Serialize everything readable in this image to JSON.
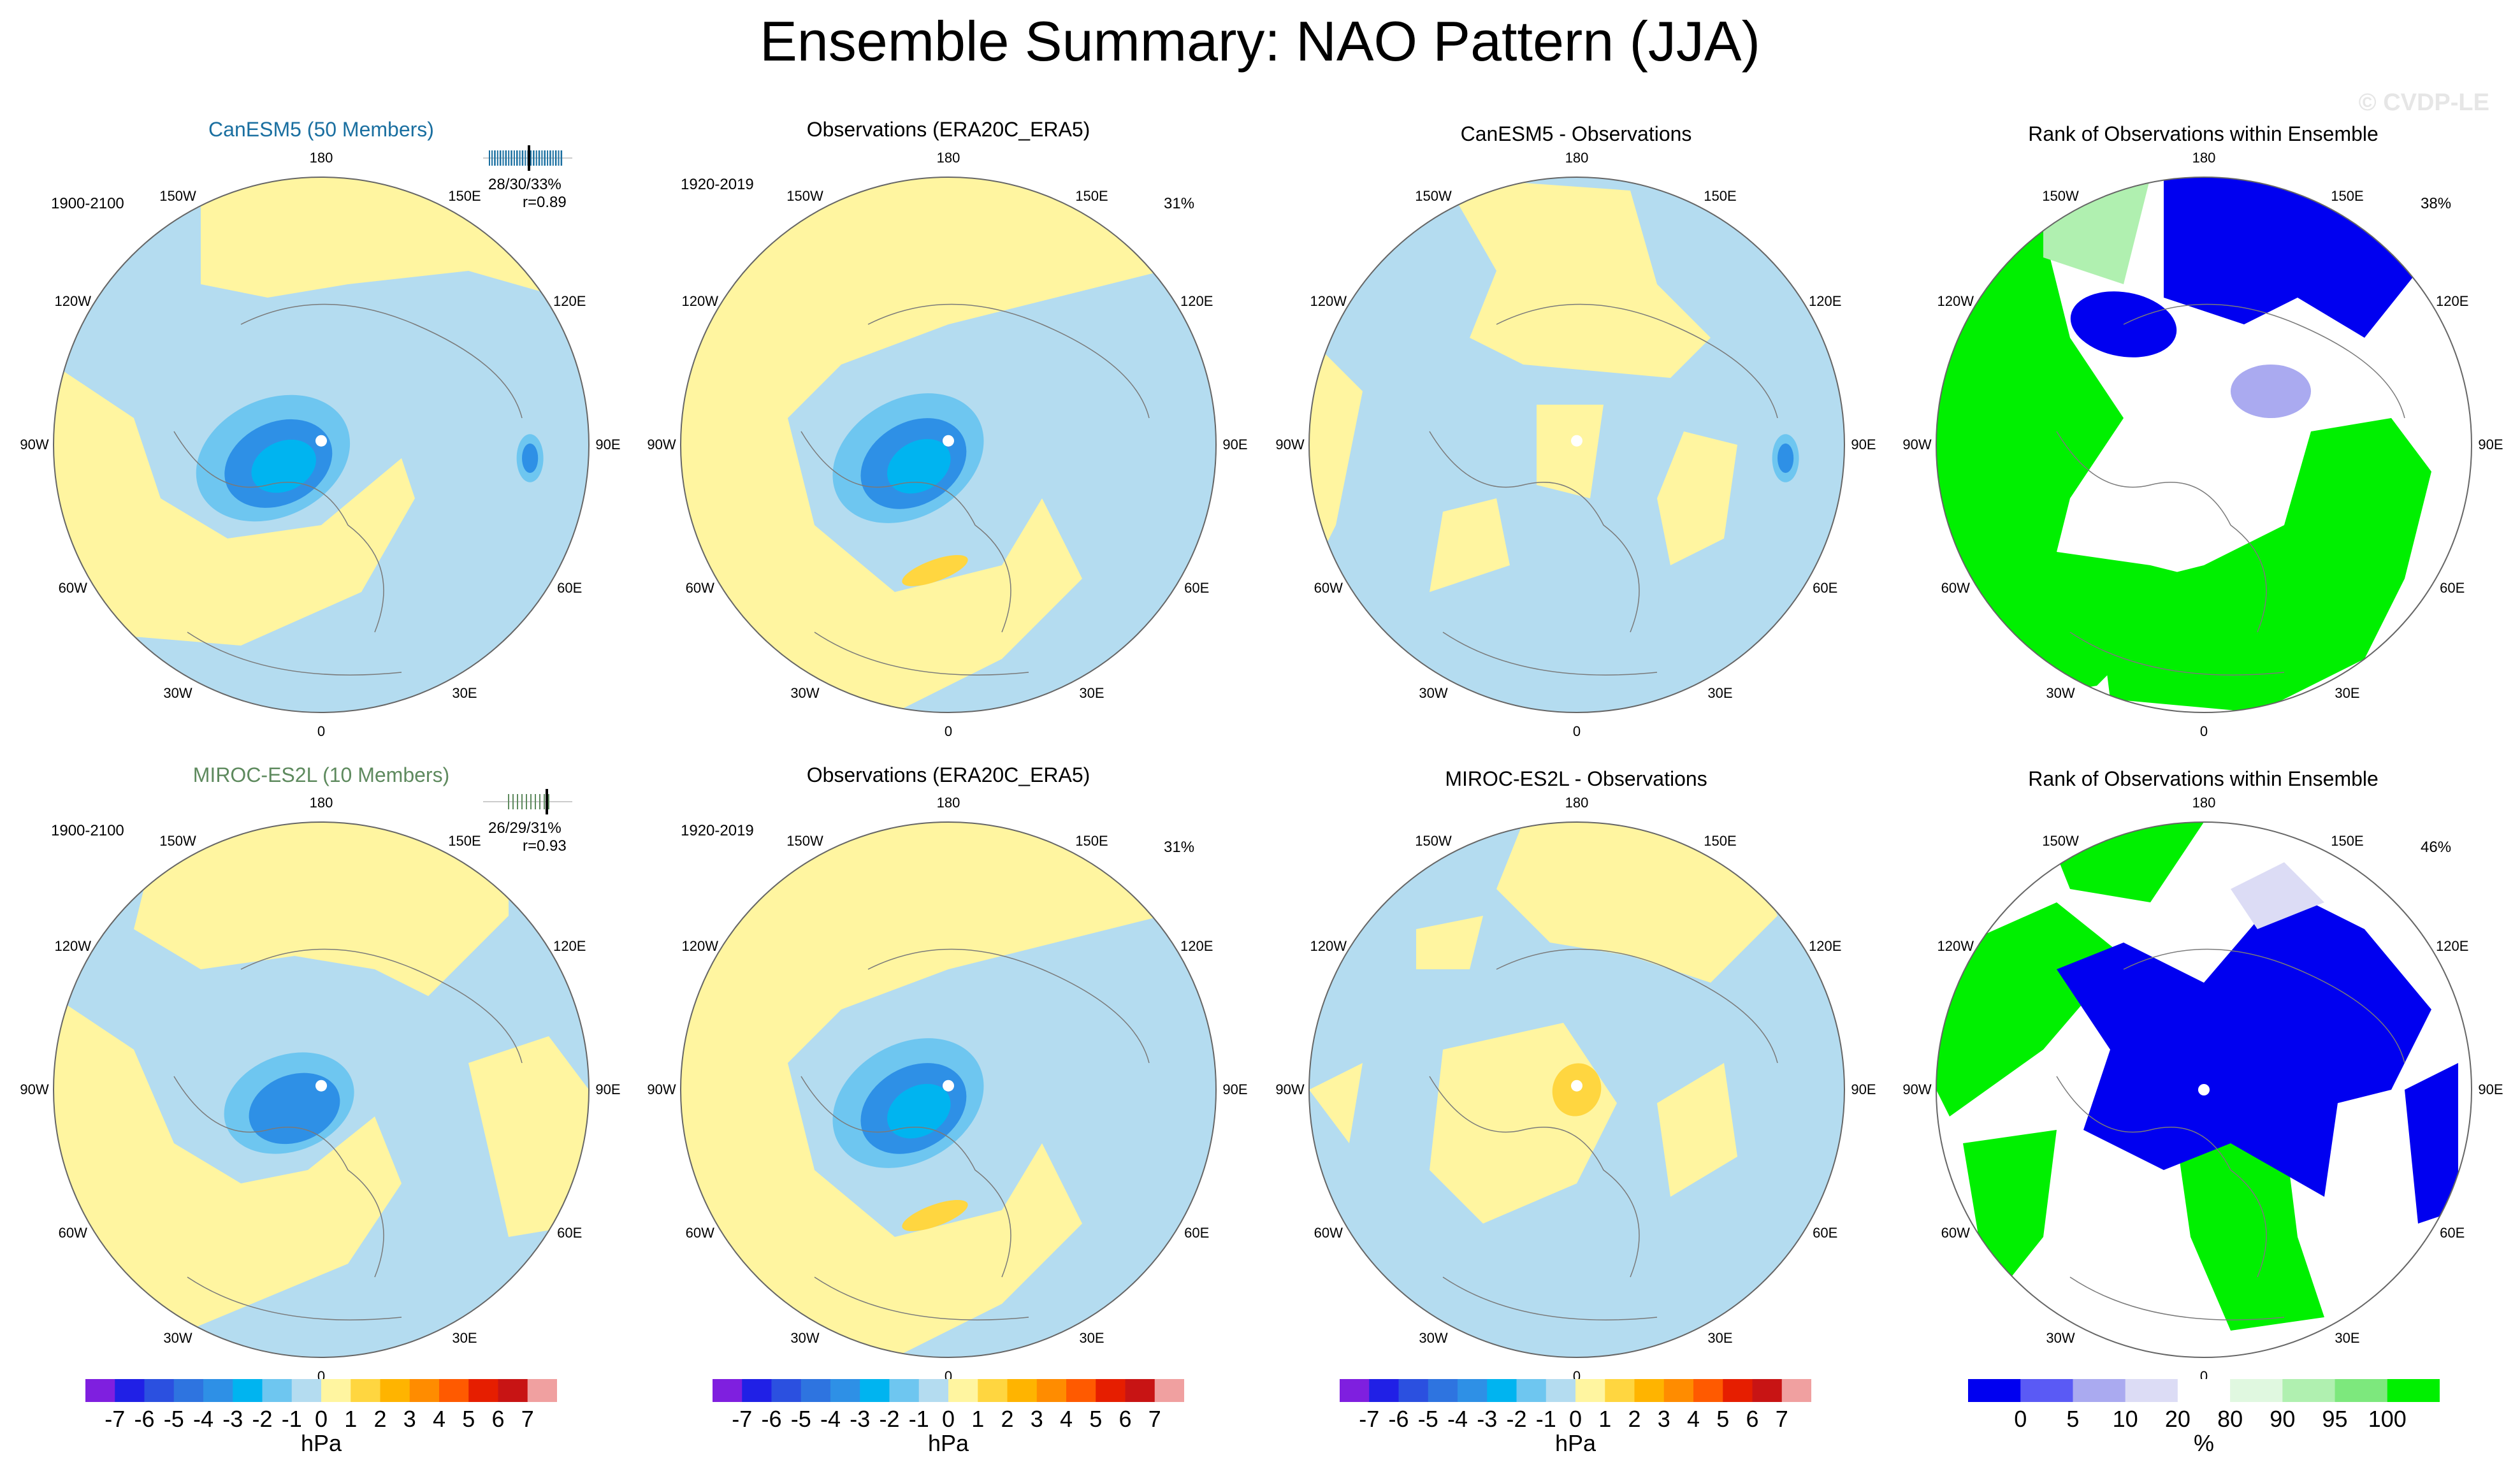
{
  "title": "Ensemble Summary: NAO Pattern (JJA)",
  "watermark": "© CVDP-LE",
  "rows": [
    {
      "model": {
        "title": "CanESM5 (50 Members)",
        "color": "#1a6fa0",
        "period": "1900-2100",
        "stats": "28/30/33%",
        "corr": "r=0.89"
      },
      "obs": {
        "title": "Observations (ERA20C_ERA5)",
        "period": "1920-2019",
        "pct": "31%"
      },
      "diff": {
        "title": "CanESM5 - Observations"
      },
      "rank": {
        "title": "Rank of Observations within Ensemble",
        "pct": "38%"
      }
    },
    {
      "model": {
        "title": "MIROC-ES2L (10 Members)",
        "color": "#5e8a5e",
        "period": "1900-2100",
        "stats": "26/29/31%",
        "corr": "r=0.93"
      },
      "obs": {
        "title": "Observations (ERA20C_ERA5)",
        "period": "1920-2019",
        "pct": "31%"
      },
      "diff": {
        "title": "MIROC-ES2L - Observations"
      },
      "rank": {
        "title": "Rank of Observations within Ensemble",
        "pct": "46%"
      }
    }
  ],
  "lon_labels": [
    "180",
    "150E",
    "120E",
    "90E",
    "60E",
    "30E",
    "0",
    "30W",
    "60W",
    "90W",
    "120W",
    "150W"
  ],
  "colorbar_hpa": {
    "labels": [
      "-7",
      "-6",
      "-5",
      "-4",
      "-3",
      "-2",
      "-1",
      "0",
      "1",
      "2",
      "3",
      "4",
      "5",
      "6",
      "7"
    ],
    "unit": "hPa",
    "colors": [
      "#7f1fdf",
      "#2020e6",
      "#2b50e0",
      "#2e74e0",
      "#2e90e6",
      "#00b4f0",
      "#6ec6f0",
      "#b4dcf0",
      "#fff5a0",
      "#ffd640",
      "#ffb400",
      "#ff8c00",
      "#ff5a00",
      "#e61e00",
      "#c81414",
      "#f0a0a0"
    ]
  },
  "colorbar_rank": {
    "labels": [
      "0",
      "5",
      "10",
      "20",
      "80",
      "90",
      "95",
      "100"
    ],
    "unit": "%",
    "colors": [
      "#0000f0",
      "#5a5af5",
      "#aaaaf0",
      "#dcdcf5",
      "#ffffff",
      "#e0f8e0",
      "#b0f0b0",
      "#7de87d",
      "#00f000"
    ]
  },
  "chart_data": [
    {
      "type": "heatmap",
      "panel": "CanESM5 (50 Members)",
      "units": "hPa",
      "features": [
        {
          "kind": "low",
          "region": "Greenland/Arctic",
          "min_value": -4
        },
        {
          "kind": "low",
          "region": "Russia",
          "min_value": -4
        }
      ]
    },
    {
      "type": "heatmap",
      "panel": "Observations (ERA20C_ERA5) row 1",
      "units": "hPa",
      "features": [
        {
          "kind": "low",
          "region": "Greenland/Arctic",
          "min_value": -4
        },
        {
          "kind": "high",
          "region": "British Isles/North Sea",
          "max_value": 1
        }
      ]
    },
    {
      "type": "heatmap",
      "panel": "CanESM5 - Observations",
      "units": "hPa",
      "features": [
        {
          "kind": "low",
          "region": "Russia",
          "min_value": -4
        }
      ]
    },
    {
      "type": "heatmap",
      "panel": "Rank of Observations within Ensemble row 1",
      "units": "%",
      "summary": "38%"
    },
    {
      "type": "heatmap",
      "panel": "MIROC-ES2L (10 Members)",
      "units": "hPa",
      "features": [
        {
          "kind": "low",
          "region": "Greenland/Arctic",
          "min_value": -3
        }
      ]
    },
    {
      "type": "heatmap",
      "panel": "Observations (ERA20C_ERA5) row 2",
      "units": "hPa",
      "features": [
        {
          "kind": "low",
          "region": "Greenland/Arctic",
          "min_value": -4
        },
        {
          "kind": "high",
          "region": "British Isles/North Sea",
          "max_value": 1
        }
      ]
    },
    {
      "type": "heatmap",
      "panel": "MIROC-ES2L - Observations",
      "units": "hPa",
      "features": [
        {
          "kind": "high",
          "region": "Greenland",
          "max_value": 1
        }
      ]
    },
    {
      "type": "heatmap",
      "panel": "Rank of Observations within Ensemble row 2",
      "units": "%",
      "summary": "46%"
    }
  ]
}
